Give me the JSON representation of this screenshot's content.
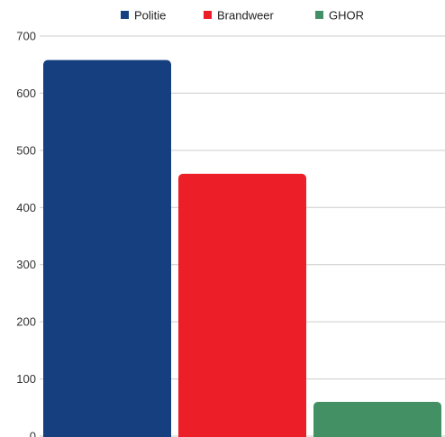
{
  "chart_data": {
    "type": "bar",
    "title": "",
    "xlabel": "",
    "ylabel": "",
    "ylim": [
      0,
      700
    ],
    "yticks": [
      0,
      100,
      200,
      300,
      400,
      500,
      600,
      700
    ],
    "categories": [
      "Politie",
      "Brandweer",
      "GHOR"
    ],
    "values": [
      658,
      459,
      60
    ],
    "colors": [
      "#163f7f",
      "#ec1e27",
      "#439065"
    ],
    "grid": true,
    "legend_position": "top",
    "legend": [
      {
        "label": "Politie",
        "color": "#163f7f"
      },
      {
        "label": "Brandweer",
        "color": "#ec1e27"
      },
      {
        "label": "GHOR",
        "color": "#439065"
      }
    ]
  }
}
